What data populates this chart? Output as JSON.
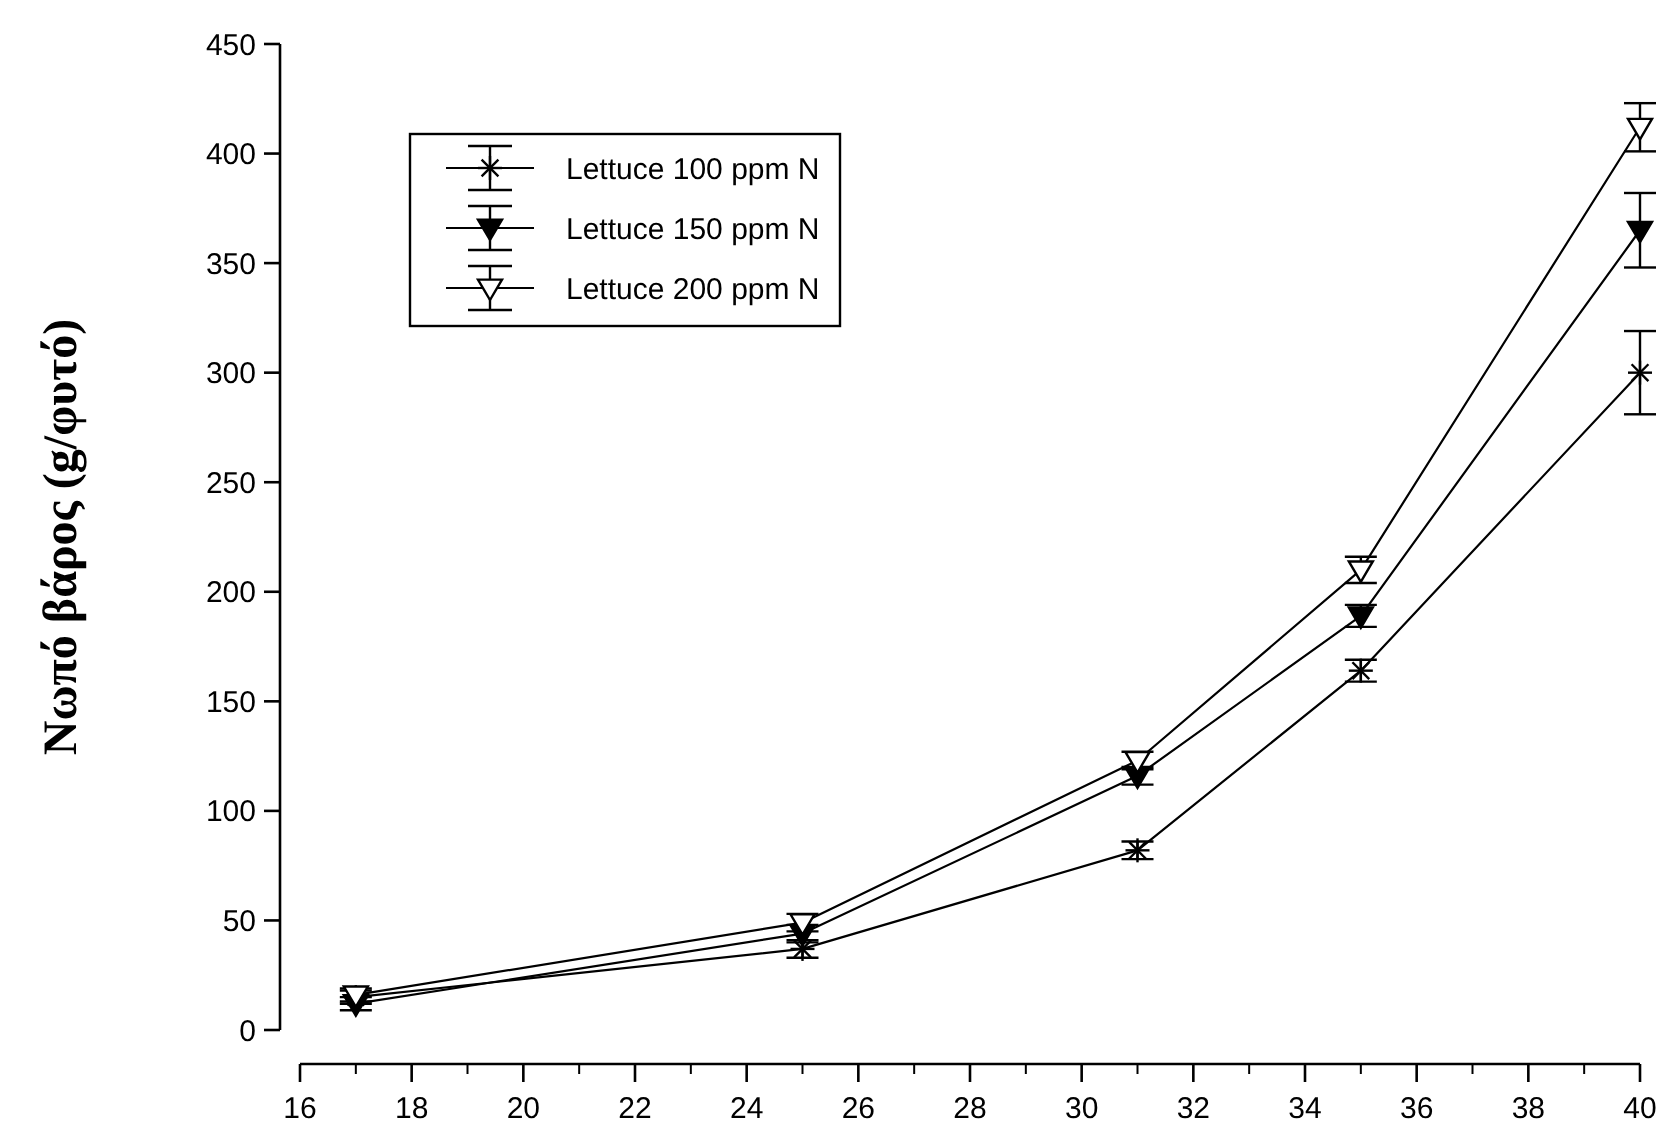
{
  "chart_data": {
    "type": "line",
    "ylabel": "Νωπό βάρος (g/φυτό)",
    "x": [
      17,
      25,
      31,
      35,
      40
    ],
    "xlim": [
      16,
      40
    ],
    "xticks": [
      16,
      18,
      20,
      22,
      24,
      26,
      28,
      30,
      32,
      34,
      36,
      38,
      40
    ],
    "ylim": [
      0,
      450
    ],
    "yticks": [
      0,
      50,
      100,
      150,
      200,
      250,
      300,
      350,
      400,
      450
    ],
    "legend": "top left",
    "grid": false,
    "line_style": "solid",
    "series": [
      {
        "name": "Lettuce 100 ppm N",
        "color": "#000000",
        "marker": "cross",
        "values": [
          15,
          37,
          82,
          164,
          300
        ],
        "errors": [
          3,
          4,
          4,
          5,
          19
        ]
      },
      {
        "name": "Lettuce 150 ppm N",
        "color": "#000000",
        "marker": "triangle",
        "values": [
          12,
          44,
          116,
          189,
          365
        ],
        "errors": [
          3,
          4,
          4,
          5,
          17
        ]
      },
      {
        "name": "Lettuce 200 ppm N",
        "color": "#000000",
        "marker": "triangle",
        "values": [
          16,
          49,
          123,
          210,
          412
        ],
        "errors": [
          3,
          4,
          4,
          6,
          11
        ]
      }
    ]
  }
}
